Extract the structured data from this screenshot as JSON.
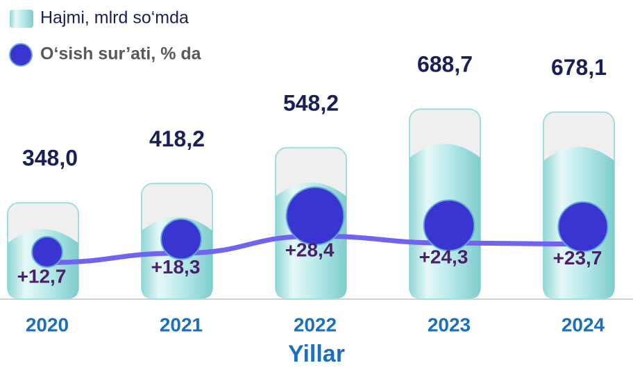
{
  "chart_data": {
    "type": "bar-bubble",
    "categories": [
      "2020",
      "2021",
      "2022",
      "2023",
      "2024"
    ],
    "xlabel": "Yillar",
    "series": [
      {
        "name": "Hajmi, mlrd so‘mda",
        "color": "#a9e4e4",
        "values": [
          348.0,
          418.2,
          548.2,
          688.7,
          678.1
        ],
        "value_labels": [
          "348,0",
          "418,2",
          "548,2",
          "688,7",
          "678,1"
        ]
      },
      {
        "name": "O‘sish sur’ati, % da",
        "color": "#3a34d0",
        "values": [
          12.7,
          18.3,
          28.4,
          24.3,
          23.7
        ],
        "value_labels": [
          "+12,7",
          "+18,3",
          "+28,4",
          "+24,3",
          "+23,7"
        ]
      }
    ]
  }
}
